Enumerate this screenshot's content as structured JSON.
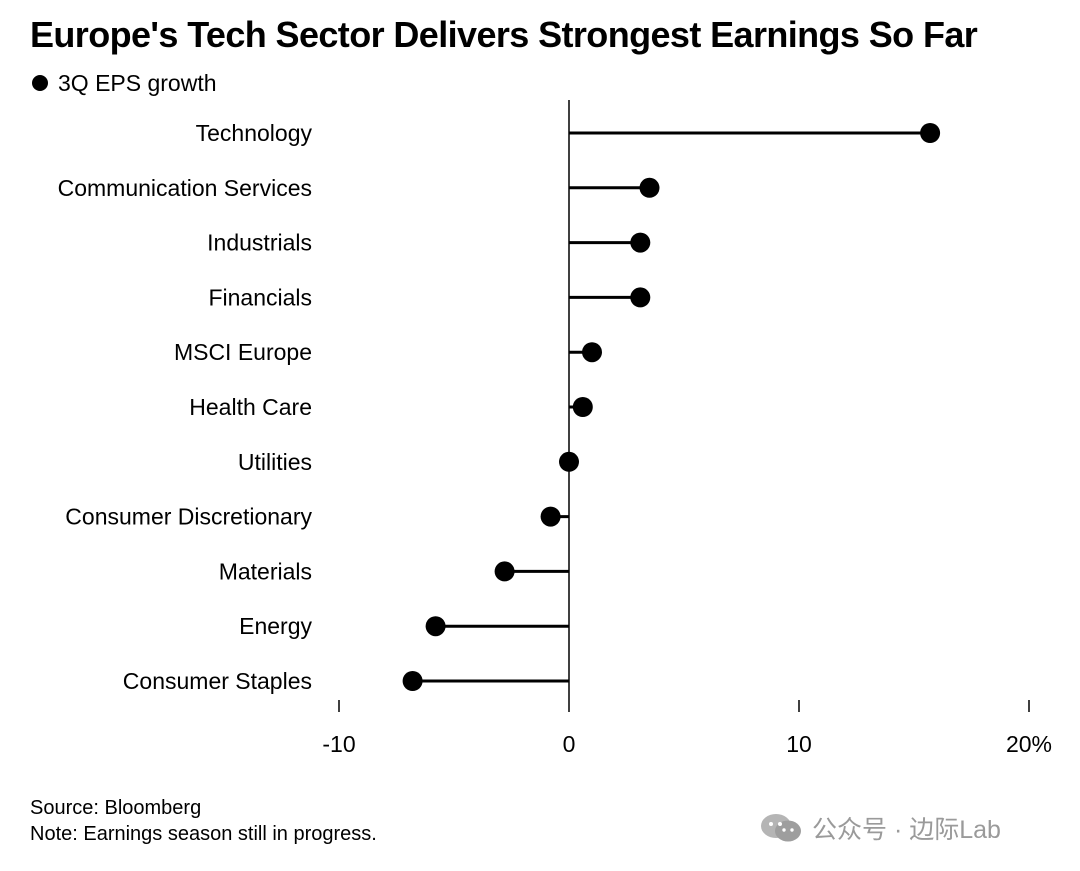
{
  "title": "Europe's Tech Sector Delivers Strongest Earnings So Far",
  "legend": {
    "label": "3Q EPS growth"
  },
  "chart_data": {
    "type": "lollipop",
    "title": "Europe's Tech Sector Delivers Strongest Earnings So Far",
    "series": [
      {
        "name": "3Q EPS growth",
        "values": [
          15.7,
          3.5,
          3.1,
          3.1,
          1.0,
          0.6,
          0.0,
          -0.8,
          -2.8,
          -5.8,
          -6.8
        ]
      }
    ],
    "categories": [
      "Technology",
      "Communication Services",
      "Industrials",
      "Financials",
      "MSCI Europe",
      "Health Care",
      "Utilities",
      "Consumer Discretionary",
      "Materials",
      "Energy",
      "Consumer Staples"
    ],
    "xlim": [
      -10,
      20
    ],
    "xticks": [
      -10,
      0,
      10,
      20
    ],
    "xtick_labels": [
      "-10",
      "0",
      "10",
      "20%"
    ],
    "xlabel": "",
    "ylabel": ""
  },
  "footer": {
    "source": "Source: Bloomberg",
    "note": "Note: Earnings season still in progress."
  },
  "watermark": {
    "text": "公众号 · 边际Lab",
    "icon": "wechat-icon"
  }
}
